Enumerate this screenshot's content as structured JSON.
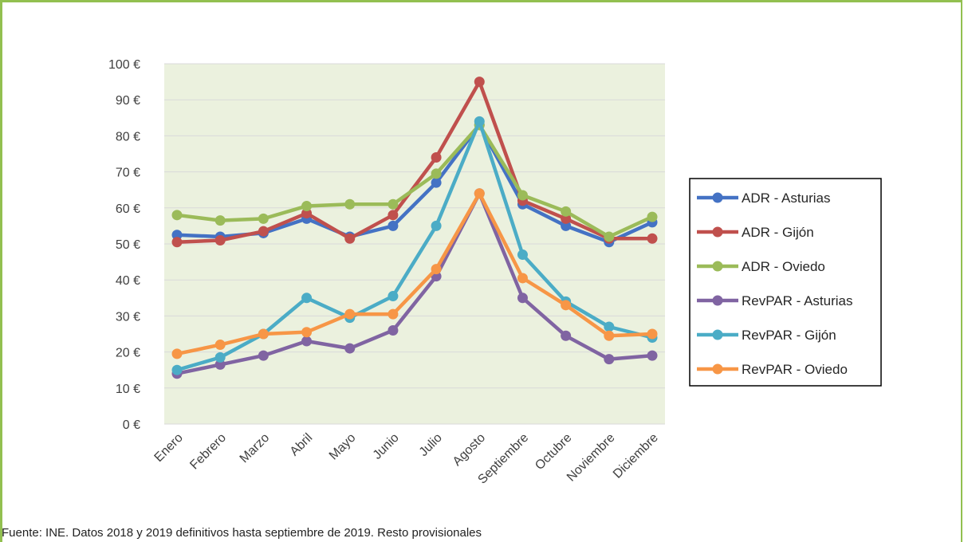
{
  "chart_data": {
    "type": "line",
    "title": "",
    "xlabel": "",
    "ylabel": "",
    "categories": [
      "Enero",
      "Febrero",
      "Marzo",
      "Abril",
      "Mayo",
      "Junio",
      "Julio",
      "Agosto",
      "Septiembre",
      "Octubre",
      "Noviembre",
      "Diciembre"
    ],
    "ylim": [
      0,
      100
    ],
    "y_ticks": [
      "0 €",
      "10 €",
      "20 €",
      "30 €",
      "40 €",
      "50 €",
      "60 €",
      "70 €",
      "80 €",
      "90 €",
      "100 €"
    ],
    "grid": true,
    "legend_position": "right",
    "series": [
      {
        "name": "ADR - Asturias",
        "color": "#4472c4",
        "values": [
          52.5,
          52,
          53,
          57,
          52,
          55,
          67,
          83,
          61,
          55,
          50.5,
          56
        ]
      },
      {
        "name": "ADR - Gijón",
        "color": "#c0504d",
        "values": [
          50.5,
          51,
          53.5,
          58.5,
          51.5,
          58,
          74,
          95,
          62,
          57,
          51.5,
          51.5
        ]
      },
      {
        "name": "ADR - Oviedo",
        "color": "#9bbb59",
        "values": [
          58,
          56.5,
          57,
          60.5,
          61,
          61,
          69.5,
          83,
          63.5,
          59,
          52,
          57.5
        ]
      },
      {
        "name": "RevPAR - Asturias",
        "color": "#8064a2",
        "values": [
          14,
          16.5,
          19,
          23,
          21,
          26,
          41,
          64,
          35,
          24.5,
          18,
          19
        ]
      },
      {
        "name": "RevPAR - Gijón",
        "color": "#4bacc6",
        "values": [
          15,
          18.5,
          25,
          35,
          29.5,
          35.5,
          55,
          84,
          47,
          34,
          27,
          24
        ]
      },
      {
        "name": "RevPAR - Oviedo",
        "color": "#f79646",
        "values": [
          19.5,
          22,
          25,
          25.5,
          30.5,
          30.5,
          43,
          64,
          40.5,
          33,
          24.5,
          25
        ]
      }
    ],
    "plot_background": "#ebf1de",
    "source": "Fuente: INE. Datos 2018 y 2019 definitivos hasta septiembre de 2019. Resto provisionales"
  }
}
